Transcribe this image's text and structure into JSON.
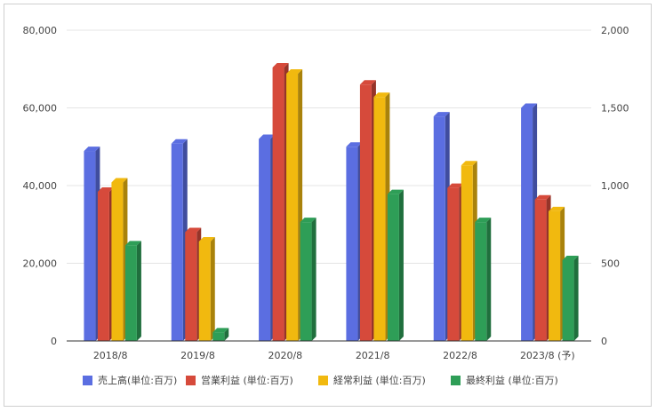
{
  "chart_data": {
    "type": "bar",
    "style": "3d-clustered-column",
    "grid": true,
    "legend_position": "bottom",
    "categories": [
      "2018/8",
      "2019/8",
      "2020/8",
      "2021/8",
      "2022/8",
      "2023/8 (予)"
    ],
    "left_axis": {
      "ylim": [
        0,
        80000
      ],
      "ticks": [
        0,
        20000,
        40000,
        60000,
        80000
      ],
      "tick_labels": [
        "0",
        "20,000",
        "40,000",
        "60,000",
        "80,000"
      ]
    },
    "right_axis": {
      "ylim": [
        0,
        2000
      ],
      "ticks": [
        0,
        500,
        1000,
        1500,
        2000
      ],
      "tick_labels": [
        "0",
        "500",
        "1,000",
        "1,500",
        "2,000"
      ]
    },
    "series": [
      {
        "name": "売上高(単位:百万)",
        "axis": "left",
        "color": "#5b6ee1",
        "values": [
          48900,
          50800,
          52000,
          50000,
          57800,
          60000
        ]
      },
      {
        "name": "営業利益 (単位:百万)",
        "axis": "right",
        "color": "#d64a3b",
        "values": [
          960,
          700,
          1760,
          1650,
          985,
          910
        ]
      },
      {
        "name": "経常利益 (単位:百万)",
        "axis": "right",
        "color": "#f1b90f",
        "values": [
          1020,
          640,
          1720,
          1570,
          1130,
          835
        ]
      },
      {
        "name": "最終利益 (単位:百万)",
        "axis": "right",
        "color": "#2e9e57",
        "values": [
          615,
          55,
          765,
          945,
          765,
          520
        ]
      }
    ]
  }
}
